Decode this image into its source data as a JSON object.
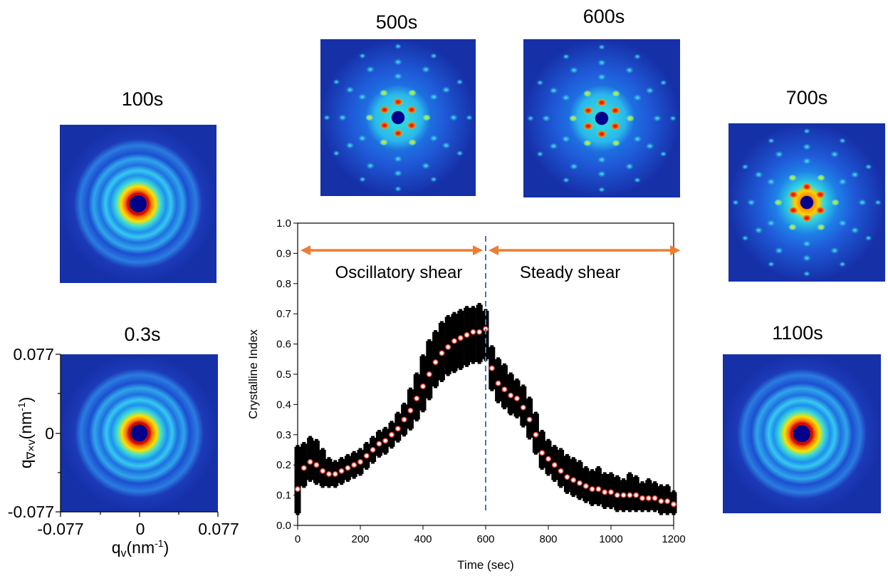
{
  "images": [
    {
      "label": "100s"
    },
    {
      "label": "500s"
    },
    {
      "label": "600s"
    },
    {
      "label": "700s"
    },
    {
      "label": "0.3s"
    },
    {
      "label": "1100s"
    }
  ],
  "saxs_axes": {
    "xticks": [
      "-0.077",
      "0",
      "0.077"
    ],
    "yticks": [
      "0.077",
      "0",
      "-0.077"
    ],
    "xlabel": {
      "symbol": "q",
      "sub": "v",
      "unit": "(nm",
      "sup": "-1",
      "close": ")"
    },
    "ylabel": {
      "symbol": "q",
      "sub": "∇×v",
      "unit": "(nm",
      "sup": "-1",
      "close": ")"
    }
  },
  "chart_data": {
    "type": "scatter",
    "xlabel": "Time (sec)",
    "ylabel": "Crystalline Index",
    "xlim": [
      0,
      1200
    ],
    "xticks": [
      0,
      200,
      400,
      600,
      800,
      1000,
      1200
    ],
    "ylim": [
      0,
      1
    ],
    "yticks": [
      {
        "value": 0,
        "label": "0.0"
      },
      {
        "value": 0.1,
        "label": "0.1"
      },
      {
        "value": 0.2,
        "label": "0.2"
      },
      {
        "value": 0.3,
        "label": "0.3"
      },
      {
        "value": 0.4,
        "label": "0.4"
      },
      {
        "value": 0.5,
        "label": "0.5"
      },
      {
        "value": 0.6,
        "label": "0.6"
      },
      {
        "value": 0.7,
        "label": "0.7"
      },
      {
        "value": 0.8,
        "label": "0.8"
      },
      {
        "value": 0.9,
        "label": "0.9"
      },
      {
        "value": 1,
        "label": "1.0"
      }
    ],
    "x": [
      0,
      20,
      40,
      60,
      80,
      100,
      120,
      140,
      160,
      180,
      200,
      220,
      240,
      260,
      280,
      300,
      320,
      340,
      360,
      380,
      400,
      420,
      440,
      460,
      480,
      500,
      520,
      540,
      560,
      580,
      600,
      620,
      640,
      660,
      680,
      700,
      720,
      740,
      760,
      780,
      800,
      820,
      840,
      860,
      880,
      900,
      920,
      940,
      960,
      980,
      1000,
      1020,
      1040,
      1060,
      1080,
      1100,
      1120,
      1140,
      1160,
      1180,
      1200
    ],
    "series": [
      {
        "color": "#000000",
        "marker": "square",
        "values": [
          0.04,
          0.13,
          0.15,
          0.14,
          0.13,
          0.13,
          0.13,
          0.14,
          0.15,
          0.16,
          0.17,
          0.19,
          0.21,
          0.23,
          0.24,
          0.26,
          0.28,
          0.3,
          0.32,
          0.35,
          0.38,
          0.42,
          0.46,
          0.48,
          0.5,
          0.51,
          0.52,
          0.53,
          0.54,
          0.54,
          0.55,
          0.45,
          0.41,
          0.39,
          0.37,
          0.36,
          0.33,
          0.29,
          0.24,
          0.19,
          0.17,
          0.15,
          0.13,
          0.11,
          0.1,
          0.09,
          0.08,
          0.07,
          0.07,
          0.06,
          0.06,
          0.05,
          0.05,
          0.05,
          0.05,
          0.05,
          0.05,
          0.05,
          0.04,
          0.04,
          0.04
        ]
      },
      {
        "color": "#000000",
        "marker": "square",
        "values": [
          0.26,
          0.27,
          0.29,
          0.28,
          0.25,
          0.22,
          0.21,
          0.22,
          0.23,
          0.24,
          0.25,
          0.27,
          0.29,
          0.31,
          0.32,
          0.34,
          0.37,
          0.4,
          0.45,
          0.5,
          0.56,
          0.61,
          0.64,
          0.67,
          0.69,
          0.7,
          0.71,
          0.72,
          0.72,
          0.73,
          0.71,
          0.59,
          0.55,
          0.53,
          0.5,
          0.48,
          0.46,
          0.42,
          0.37,
          0.31,
          0.28,
          0.26,
          0.25,
          0.23,
          0.22,
          0.21,
          0.19,
          0.18,
          0.19,
          0.17,
          0.17,
          0.16,
          0.15,
          0.17,
          0.16,
          0.14,
          0.15,
          0.14,
          0.13,
          0.13,
          0.11
        ]
      },
      {
        "color": "#e8483a",
        "marker": "circle",
        "values": [
          0.12,
          0.19,
          0.21,
          0.2,
          0.18,
          0.17,
          0.17,
          0.18,
          0.19,
          0.2,
          0.21,
          0.23,
          0.25,
          0.27,
          0.28,
          0.3,
          0.32,
          0.35,
          0.38,
          0.42,
          0.46,
          0.5,
          0.54,
          0.57,
          0.59,
          0.61,
          0.62,
          0.63,
          0.64,
          0.64,
          0.65,
          0.52,
          0.47,
          0.45,
          0.43,
          0.42,
          0.39,
          0.35,
          0.3,
          0.24,
          0.22,
          0.2,
          0.18,
          0.16,
          0.15,
          0.14,
          0.13,
          0.12,
          0.12,
          0.11,
          0.11,
          0.1,
          0.1,
          0.1,
          0.1,
          0.09,
          0.09,
          0.09,
          0.08,
          0.08,
          0.07
        ]
      }
    ],
    "vline": {
      "x": 600,
      "color": "#4a72b8"
    },
    "arrow_y": 0.91,
    "arrow_color": "#ed7d31",
    "regions": [
      {
        "label": "Oscillatory shear",
        "start": 0,
        "end": 600
      },
      {
        "label": "Steady shear",
        "start": 600,
        "end": 1230
      }
    ]
  }
}
